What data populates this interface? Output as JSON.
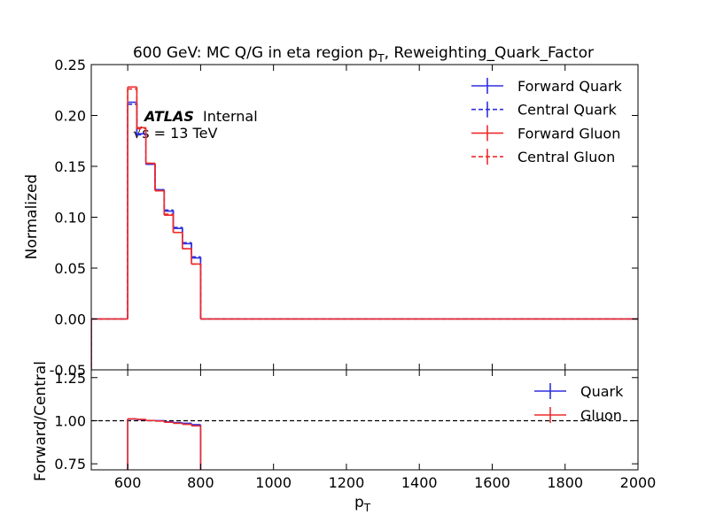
{
  "chart_data": [
    {
      "type": "histogram",
      "title": [
        "600 GeV: MC Q/G in eta region p",
        "T",
        ", Reweighting_Quark_Factor"
      ],
      "ylabel": "Normalized",
      "atlas_label": "ATLAS",
      "atlas_status": "Internal",
      "energy_label": "√s = 13 TeV",
      "bins": [
        500,
        600,
        625,
        650,
        675,
        700,
        725,
        750,
        775,
        800,
        2000
      ],
      "series": [
        {
          "name": "Forward Quark",
          "color": "#2f2fe0",
          "linestyle": "solid",
          "values": [
            0,
            0.213,
            0.182,
            0.152,
            0.127,
            0.106,
            0.089,
            0.074,
            0.06,
            0
          ]
        },
        {
          "name": "Central Quark",
          "color": "#2f2fe0",
          "linestyle": "dashed",
          "values": [
            0,
            0.211,
            0.181,
            0.152,
            0.127,
            0.107,
            0.09,
            0.075,
            0.061,
            0
          ]
        },
        {
          "name": "Forward Gluon",
          "color": "#ee2b2b",
          "linestyle": "solid",
          "values": [
            0,
            0.228,
            0.188,
            0.153,
            0.126,
            0.102,
            0.085,
            0.069,
            0.054,
            0
          ]
        },
        {
          "name": "Central Gluon",
          "color": "#ee2b2b",
          "linestyle": "dashed",
          "values": [
            0,
            0.226,
            0.187,
            0.153,
            0.126,
            0.103,
            0.085,
            0.069,
            0.054,
            0
          ]
        }
      ],
      "xlim": [
        500,
        2000
      ],
      "xticks": [
        600,
        800,
        1000,
        1200,
        1400,
        1600,
        1800,
        2000
      ],
      "ylim": [
        -0.05,
        0.25
      ],
      "yticks": [
        -0.05,
        {
          "value": 0,
          "label": "0.00"
        },
        0.05,
        {
          "value": 0.1,
          "label": "0.10"
        },
        0.15,
        {
          "value": 0.2,
          "label": "0.20"
        },
        0.25
      ],
      "legend": "upper right"
    },
    {
      "type": "histogram",
      "ylabel": "Forward/Central",
      "xlabel": [
        "p",
        "T"
      ],
      "bins": [
        600,
        625,
        650,
        675,
        700,
        725,
        750,
        775,
        800
      ],
      "series": [
        {
          "name": "Quark",
          "color": "#2f2fe0",
          "linestyle": "solid",
          "values": [
            1.01,
            1.006,
            1.001,
            1.0,
            0.994,
            0.989,
            0.985,
            0.977
          ]
        },
        {
          "name": "Gluon",
          "color": "#ee2b2b",
          "linestyle": "solid",
          "values": [
            1.011,
            1.008,
            1.001,
            0.998,
            0.991,
            0.985,
            0.979,
            0.97
          ]
        }
      ],
      "reference_line": 1,
      "xlim": [
        500,
        2000
      ],
      "xticks": [
        600,
        800,
        1000,
        1200,
        1400,
        1600,
        1800,
        2000
      ],
      "ylim": [
        0.715,
        1.295
      ],
      "yticks": [
        0.75,
        {
          "value": 1,
          "label": "1.00"
        },
        1.25
      ],
      "legend": "upper right"
    }
  ]
}
